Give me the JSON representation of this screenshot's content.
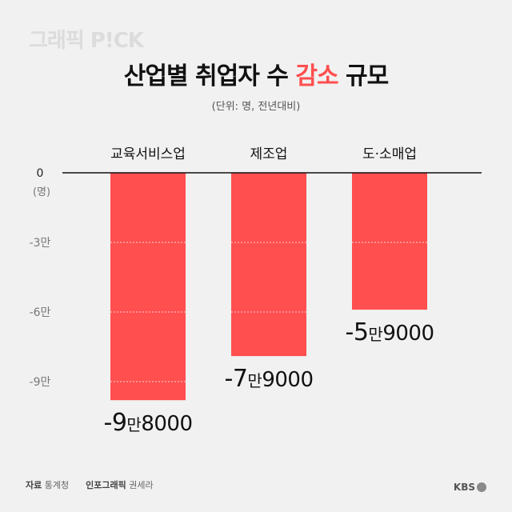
{
  "header": {
    "logo": "그래픽 P!CK",
    "title_before": "산업별 취업자 수 ",
    "title_highlight": "감소",
    "title_after": " 규모",
    "unit": "(단위: 명, 전년대비)"
  },
  "footer": {
    "source_label": "자료",
    "source_value": "통계청",
    "credit_label": "인포그래픽",
    "credit_value": "권세라",
    "brand": "KBS"
  },
  "colors": {
    "bar": "#ff4f4f",
    "highlight": "#ff4f4f",
    "axis": "#111111"
  },
  "chart_data": {
    "type": "bar",
    "categories": [
      "교육서비스업",
      "제조업",
      "도·소매업"
    ],
    "values": [
      -98000,
      -79000,
      -59000
    ],
    "value_labels": [
      {
        "sign": "-",
        "num1": "9",
        "unit": "만",
        "num2": "8000"
      },
      {
        "sign": "-",
        "num1": "7",
        "unit": "만",
        "num2": "9000"
      },
      {
        "sign": "-",
        "num1": "5",
        "unit": "만",
        "num2": "9000"
      }
    ],
    "y_ticks": [
      {
        "value": 0,
        "label": "0"
      },
      {
        "value": -30000,
        "label": "-3만"
      },
      {
        "value": -60000,
        "label": "-6만"
      },
      {
        "value": -90000,
        "label": "-9만"
      }
    ],
    "y_unit_label": "(명)",
    "ylim": [
      -100000,
      0
    ],
    "grid": "dotted"
  }
}
